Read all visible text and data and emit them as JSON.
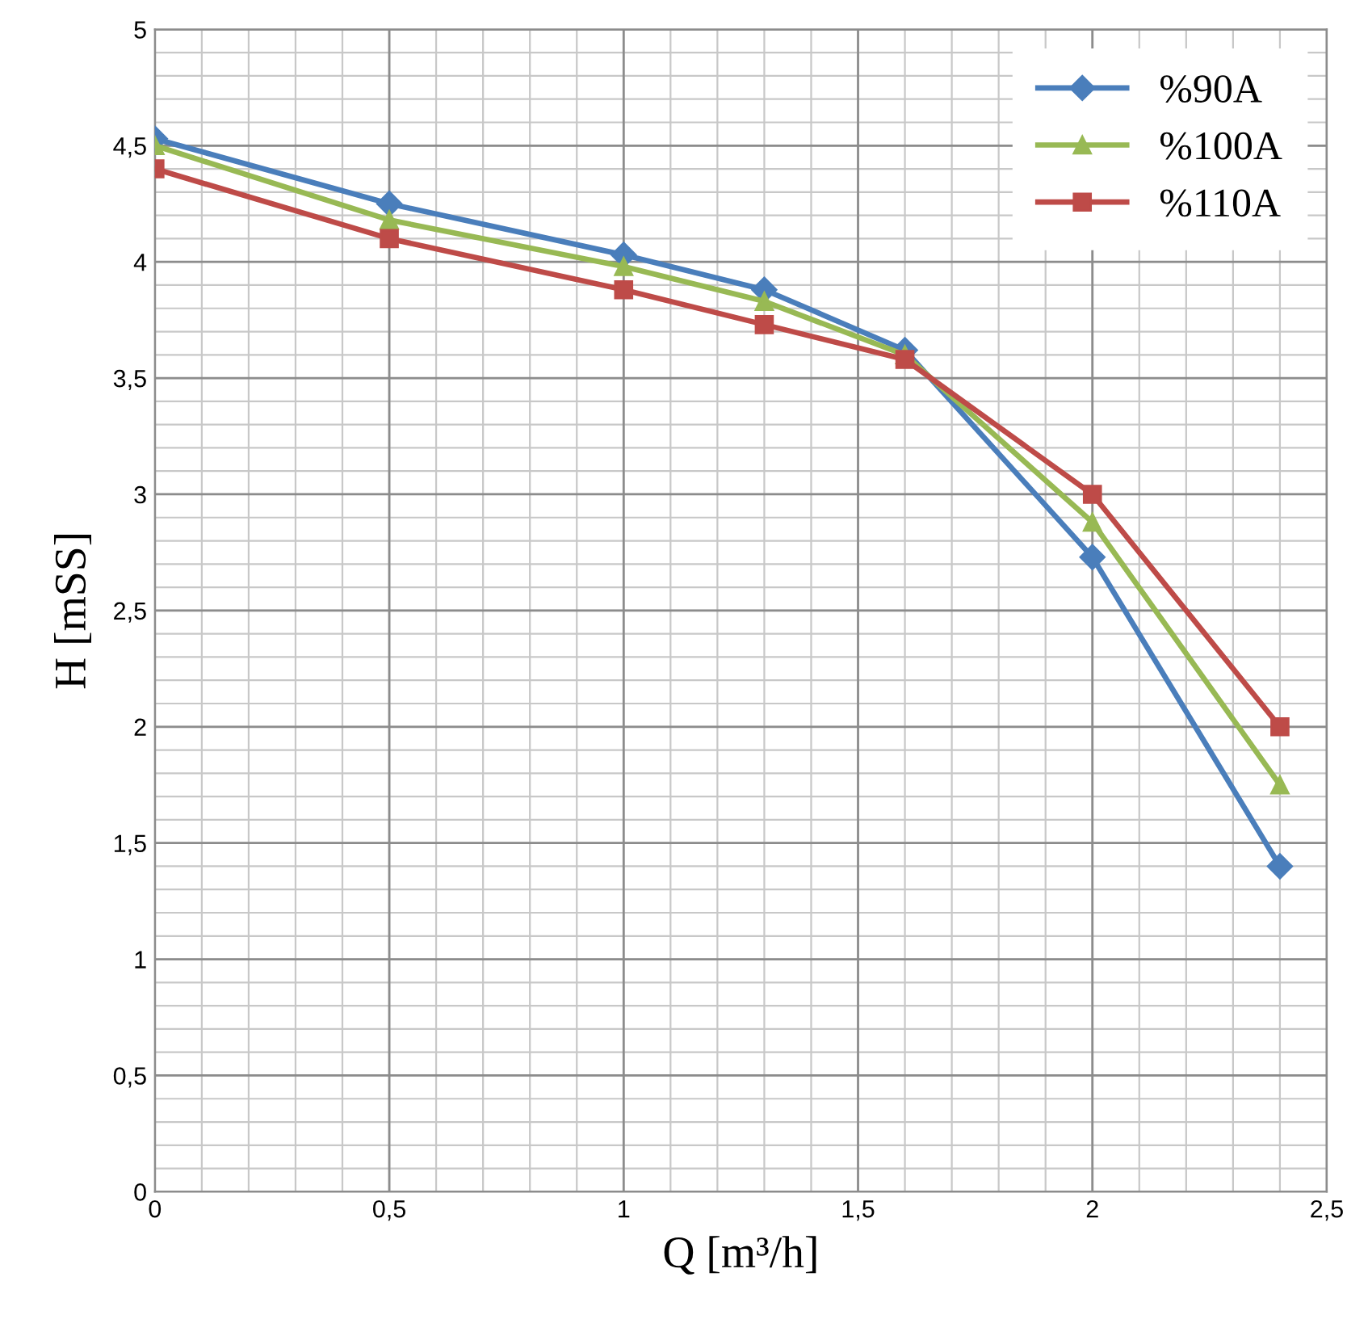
{
  "chart_data": {
    "type": "line",
    "xlabel": "Q [m³/h]",
    "ylabel": "H [mSS]",
    "x": [
      0,
      0.5,
      1,
      1.3,
      1.6,
      2,
      2.4
    ],
    "series": [
      {
        "name": "%90A",
        "color": "#4a7ebb",
        "marker": "diamond",
        "values": [
          4.53,
          4.25,
          4.03,
          3.88,
          3.62,
          2.73,
          1.4
        ]
      },
      {
        "name": "%100A",
        "color": "#98b954",
        "marker": "triangle",
        "values": [
          4.5,
          4.18,
          3.98,
          3.83,
          3.6,
          2.88,
          1.75
        ]
      },
      {
        "name": "%110A",
        "color": "#be4b48",
        "marker": "square",
        "values": [
          4.4,
          4.1,
          3.88,
          3.73,
          3.58,
          3.0,
          2.0
        ]
      }
    ],
    "xlim": [
      0,
      2.5
    ],
    "ylim": [
      0,
      5
    ],
    "xticks": [
      0,
      {
        "value": 0.5,
        "label": "0,5"
      },
      1,
      {
        "value": 1.5,
        "label": "1,5"
      },
      2,
      {
        "value": 2.5,
        "label": "2,5"
      }
    ],
    "yticks": [
      0,
      {
        "value": 0.5,
        "label": "0,5"
      },
      1,
      {
        "value": 1.5,
        "label": "1,5"
      },
      2,
      {
        "value": 2.5,
        "label": "2,5"
      },
      3,
      {
        "value": 3.5,
        "label": "3,5"
      },
      4,
      {
        "value": 4.5,
        "label": "4,5"
      },
      5
    ],
    "grid": true,
    "legend": "top right",
    "line_style": "solid"
  }
}
